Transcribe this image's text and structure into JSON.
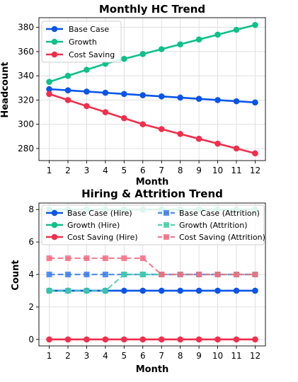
{
  "chart_data": [
    {
      "type": "line",
      "title": "Monthly HC Trend",
      "xlabel": "Month",
      "ylabel": "Headcount",
      "x": [
        1,
        2,
        3,
        4,
        5,
        6,
        7,
        8,
        9,
        10,
        11,
        12
      ],
      "ylim": [
        270,
        388
      ],
      "yticks": [
        280,
        300,
        320,
        340,
        360,
        380
      ],
      "grid": true,
      "legend": "top-left",
      "series": [
        {
          "name": "Base Case",
          "color": "#0a55e8",
          "marker": "circle",
          "dash": false,
          "values": [
            329,
            328,
            327,
            326,
            325,
            324,
            323,
            322,
            321,
            320,
            319,
            318
          ]
        },
        {
          "name": "Growth",
          "color": "#0ec08a",
          "marker": "circle",
          "dash": false,
          "values": [
            335,
            340,
            345,
            350,
            354,
            358,
            362,
            366,
            370,
            374,
            378,
            382
          ]
        },
        {
          "name": "Cost Saving",
          "color": "#f02f4b",
          "marker": "circle",
          "dash": false,
          "values": [
            325,
            320,
            315,
            310,
            305,
            300,
            296,
            292,
            288,
            284,
            280,
            276
          ]
        }
      ]
    },
    {
      "type": "line",
      "title": "Hiring & Attrition Trend",
      "xlabel": "Month",
      "ylabel": "Count",
      "x": [
        1,
        2,
        3,
        4,
        5,
        6,
        7,
        8,
        9,
        10,
        11,
        12
      ],
      "ylim": [
        -0.4,
        8.4
      ],
      "yticks": [
        0,
        2,
        4,
        6,
        8
      ],
      "grid": true,
      "legend": "top",
      "series": [
        {
          "name": "Base Case (Hire)",
          "color": "#0a55e8",
          "marker": "circle",
          "dash": false,
          "values": [
            3,
            3,
            3,
            3,
            3,
            3,
            3,
            3,
            3,
            3,
            3,
            3
          ]
        },
        {
          "name": "Base Case (Attrition)",
          "color": "#3b7cf0",
          "marker": "square",
          "dash": true,
          "values": [
            4,
            4,
            4,
            4,
            4,
            4,
            4,
            4,
            4,
            4,
            4,
            4
          ]
        },
        {
          "name": "Growth (Hire)",
          "color": "#0ec08a",
          "marker": "circle",
          "dash": false,
          "values": [
            8,
            8,
            8,
            8,
            8,
            8,
            8,
            8,
            8,
            8,
            8,
            8
          ]
        },
        {
          "name": "Growth (Attrition)",
          "color": "#3fd1a4",
          "marker": "square",
          "dash": true,
          "values": [
            3,
            3,
            3,
            3,
            4,
            4,
            4,
            4,
            4,
            4,
            4,
            4
          ]
        },
        {
          "name": "Cost Saving (Hire)",
          "color": "#f02f4b",
          "marker": "circle",
          "dash": false,
          "values": [
            0,
            0,
            0,
            0,
            0,
            0,
            0,
            0,
            0,
            0,
            0,
            0
          ]
        },
        {
          "name": "Cost Saving (Attrition)",
          "color": "#f76b81",
          "marker": "square",
          "dash": true,
          "values": [
            5,
            5,
            5,
            5,
            5,
            5,
            4,
            4,
            4,
            4,
            4,
            4
          ]
        }
      ]
    }
  ]
}
